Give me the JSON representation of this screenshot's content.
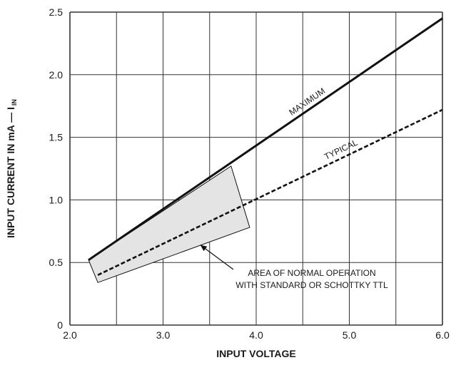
{
  "chart_data": {
    "type": "line",
    "xlabel": "INPUT VOLTAGE",
    "ylabel": "INPUT CURRENT IN mA — I",
    "ylabel_sub": "IN",
    "xlim": [
      2.0,
      6.0
    ],
    "ylim": [
      0,
      2.5
    ],
    "x_ticks": [
      "2.0",
      "3.0",
      "4.0",
      "5.0",
      "6.0"
    ],
    "y_ticks": [
      "0",
      "0.5",
      "1.0",
      "1.5",
      "2.0",
      "2.5"
    ],
    "x_grid": [
      2.0,
      2.5,
      3.0,
      3.5,
      4.0,
      4.5,
      5.0,
      5.5,
      6.0
    ],
    "y_grid": [
      0,
      0.5,
      1.0,
      1.5,
      2.0,
      2.5
    ],
    "grid": true,
    "series": [
      {
        "name": "MAXIMUM",
        "style": "solid",
        "x": [
          2.2,
          6.0
        ],
        "y": [
          0.52,
          2.45
        ]
      },
      {
        "name": "TYPICAL",
        "style": "dashed",
        "x": [
          2.3,
          6.0
        ],
        "y": [
          0.4,
          1.72
        ]
      }
    ],
    "region": {
      "label_line1": "AREA OF NORMAL OPERATION",
      "label_line2": "WITH STANDARD OR SCHOTTKY TTL",
      "polygon": [
        [
          2.2,
          0.52
        ],
        [
          3.73,
          1.27
        ],
        [
          3.93,
          0.78
        ],
        [
          2.3,
          0.34
        ]
      ],
      "pointer_to": [
        3.4,
        0.64
      ],
      "fill": "#e4e4e4"
    },
    "colors": {
      "line": "#111111",
      "grid": "#333333",
      "region_fill": "#e4e4e4"
    }
  }
}
